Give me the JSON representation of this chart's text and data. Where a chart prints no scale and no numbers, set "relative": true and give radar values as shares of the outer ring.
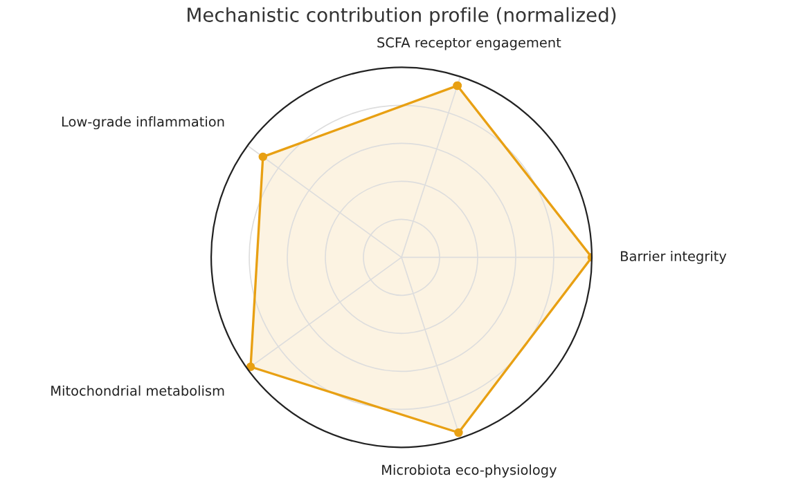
{
  "chart_data": {
    "type": "radar",
    "title": "Mechanistic contribution profile (normalized)",
    "categories": [
      "SCFA receptor engagement",
      "Barrier integrity",
      "Microbiota eco-physiology",
      "Mitochondrial metabolism",
      "Low-grade inflammation"
    ],
    "relative": true,
    "grid": true,
    "marker": "circle",
    "line_style": "solid",
    "series": [
      {
        "color": "#e8a013",
        "values": [
          0.95,
          1.0,
          0.97,
          0.98,
          0.9
        ]
      }
    ]
  }
}
